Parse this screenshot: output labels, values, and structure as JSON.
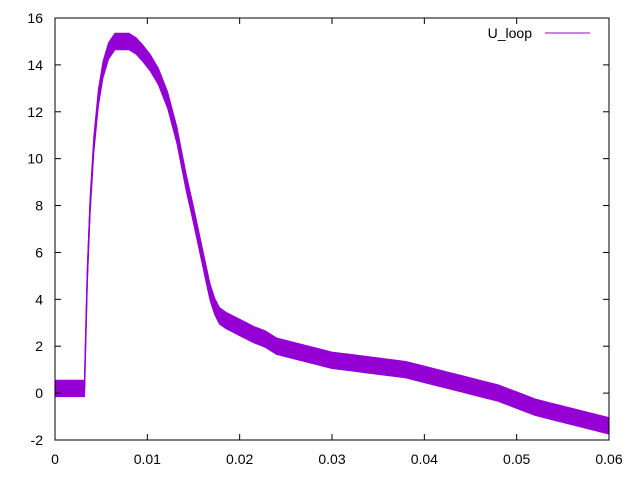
{
  "chart_data": {
    "type": "line",
    "title": "",
    "xlabel": "",
    "ylabel": "",
    "xlim": [
      0,
      0.06
    ],
    "ylim": [
      -2,
      16
    ],
    "x_ticks": [
      "0",
      "0.01",
      "0.02",
      "0.03",
      "0.04",
      "0.05",
      "0.06"
    ],
    "y_ticks": [
      "-2",
      "0",
      "2",
      "4",
      "6",
      "8",
      "10",
      "12",
      "14",
      "16"
    ],
    "grid": false,
    "legend_position": "top-right",
    "series": [
      {
        "name": "U_loop",
        "color": "#9400d3",
        "noise_band": 0.35,
        "x": [
          0,
          0.0032,
          0.0033,
          0.0035,
          0.0038,
          0.0042,
          0.0047,
          0.0052,
          0.0058,
          0.0065,
          0.0072,
          0.008,
          0.0088,
          0.0095,
          0.0103,
          0.0112,
          0.0122,
          0.0132,
          0.0142,
          0.015,
          0.0157,
          0.0163,
          0.0168,
          0.0173,
          0.0178,
          0.0185,
          0.0195,
          0.0205,
          0.0215,
          0.0228,
          0.024,
          0.026,
          0.028,
          0.03,
          0.032,
          0.034,
          0.036,
          0.038,
          0.04,
          0.042,
          0.044,
          0.046,
          0.048,
          0.05,
          0.052,
          0.054,
          0.056,
          0.058,
          0.06
        ],
        "y": [
          0.2,
          0.2,
          2.0,
          5.0,
          8.0,
          10.6,
          12.6,
          13.8,
          14.6,
          15.0,
          15.0,
          15.0,
          14.8,
          14.5,
          14.1,
          13.5,
          12.5,
          11.0,
          9.0,
          7.6,
          6.3,
          5.2,
          4.3,
          3.7,
          3.3,
          3.1,
          2.9,
          2.7,
          2.5,
          2.3,
          2.0,
          1.8,
          1.6,
          1.4,
          1.3,
          1.2,
          1.1,
          1.0,
          0.8,
          0.6,
          0.4,
          0.2,
          0.0,
          -0.3,
          -0.6,
          -0.8,
          -1.0,
          -1.2,
          -1.4
        ]
      }
    ]
  }
}
